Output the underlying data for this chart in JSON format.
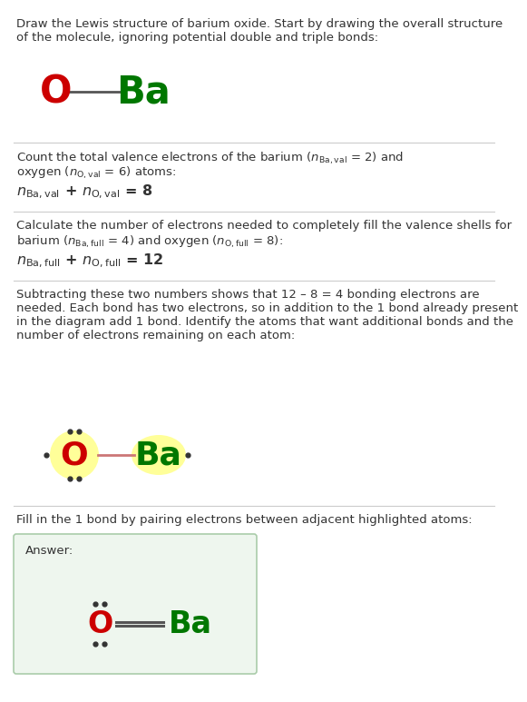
{
  "bg_color": "#ffffff",
  "text_color": "#333333",
  "O_color": "#cc0000",
  "Ba_color": "#007700",
  "highlight_yellow": "#ffff99",
  "bond_color_normal": "#555555",
  "bond_color_highlight": "#cc7777",
  "dot_color": "#333333",
  "answer_box_facecolor": "#eef6ee",
  "answer_box_edgecolor": "#aaccaa",
  "separator_color": "#cccccc",
  "title_text": "Draw the Lewis structure of barium oxide. Start by drawing the overall structure\nof the molecule, ignoring potential double and triple bonds:",
  "sec1_line1": "Count the total valence electrons of the barium (",
  "sec1_line2": ") atoms:",
  "sec1_formula": "= 8",
  "sec2_line1": "Calculate the number of electrons needed to completely fill the valence shells for",
  "sec2_line2": ") and oxygen (",
  "sec2_formula": "= 12",
  "sec3_text": "Subtracting these two numbers shows that 12 – 8 = 4 bonding electrons are\nneeded. Each bond has two electrons, so in addition to the 1 bond already present\nin the diagram add 1 bond. Identify the atoms that want additional bonds and the\nnumber of electrons remaining on each atom:",
  "sec4_text": "Fill in the 1 bond by pairing electrons between adjacent highlighted atoms:",
  "answer_label": "Answer:"
}
